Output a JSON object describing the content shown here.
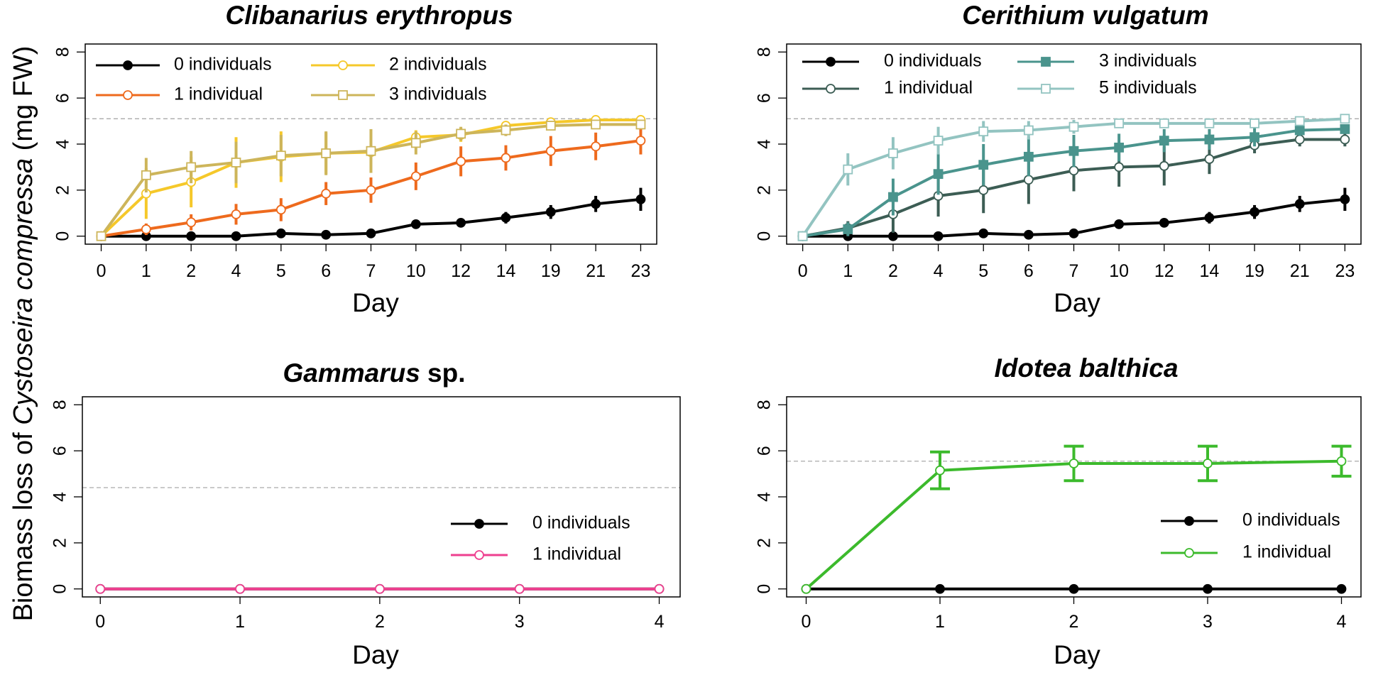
{
  "figure": {
    "y_axis_label": {
      "prefix": "Biomass loss of ",
      "italic": "Cystoseira compressa",
      "suffix": " (mg FW)"
    }
  },
  "colors": {
    "black": "#000000",
    "orange": "#ee6a1d",
    "yellow": "#f5c82a",
    "khaki": "#cdb55a",
    "darkgreen": "#3c5d54",
    "teal": "#4a948d",
    "lightteal": "#93c4c1",
    "pink": "#ee3f8f",
    "green": "#3cba2c",
    "refline": "#aaaaaa"
  },
  "chart_data": [
    {
      "id": "clibanarius",
      "type": "line",
      "title": "Clibanarius erythropus",
      "title_suffix": "",
      "xlabel": "Day",
      "ylabel": "Biomass loss of Cystoseira compressa (mg FW)",
      "categories": [
        "0",
        "1",
        "2",
        "4",
        "5",
        "6",
        "7",
        "10",
        "12",
        "14",
        "19",
        "21",
        "23"
      ],
      "ylim": [
        0,
        8
      ],
      "yticks": [
        0,
        2,
        4,
        6,
        8
      ],
      "reference_line": 5.1,
      "error_bar_style": "plain",
      "legend_columns": 2,
      "series": [
        {
          "name": "0 individuals",
          "marker": "circle",
          "fill": "filled",
          "color": "#000000",
          "values": [
            0,
            0,
            0,
            0,
            0.12,
            0.06,
            0.12,
            0.52,
            0.58,
            0.8,
            1.05,
            1.4,
            1.6
          ],
          "errors": [
            0,
            0,
            0,
            0,
            0.05,
            0.05,
            0.05,
            0.15,
            0.15,
            0.25,
            0.3,
            0.35,
            0.5
          ]
        },
        {
          "name": "1 individual",
          "marker": "circle",
          "fill": "open",
          "color": "#ee6a1d",
          "values": [
            0,
            0.3,
            0.6,
            0.95,
            1.15,
            1.85,
            2.0,
            2.6,
            3.25,
            3.4,
            3.7,
            3.9,
            4.15
          ],
          "errors": [
            0,
            0.25,
            0.35,
            0.45,
            0.5,
            0.5,
            0.55,
            0.6,
            0.65,
            0.55,
            0.65,
            0.6,
            0.6
          ]
        },
        {
          "name": "2 individuals",
          "marker": "circle",
          "fill": "open",
          "color": "#f5c82a",
          "values": [
            0,
            1.85,
            2.35,
            3.2,
            3.45,
            3.6,
            3.65,
            4.3,
            4.4,
            4.8,
            4.95,
            5.05,
            5.05
          ],
          "errors": [
            0,
            1.1,
            1.1,
            1.1,
            1.1,
            0.9,
            0.9,
            0.3,
            0.3,
            0.2,
            0.15,
            0.15,
            0.1
          ]
        },
        {
          "name": "3 individuals",
          "marker": "square",
          "fill": "open",
          "color": "#cdb55a",
          "values": [
            0,
            2.65,
            3.0,
            3.2,
            3.5,
            3.6,
            3.7,
            4.05,
            4.45,
            4.6,
            4.8,
            4.85,
            4.85
          ],
          "errors": [
            0,
            0.75,
            0.7,
            0.9,
            0.9,
            0.95,
            0.95,
            0.5,
            0.3,
            0.25,
            0.2,
            0.15,
            0.1
          ]
        }
      ]
    },
    {
      "id": "cerithium",
      "type": "line",
      "title": "Cerithium vulgatum",
      "title_suffix": "",
      "xlabel": "Day",
      "ylabel": "Biomass loss of Cystoseira compressa (mg FW)",
      "categories": [
        "0",
        "1",
        "2",
        "4",
        "5",
        "6",
        "7",
        "10",
        "12",
        "14",
        "19",
        "21",
        "23"
      ],
      "ylim": [
        0,
        8
      ],
      "yticks": [
        0,
        2,
        4,
        6,
        8
      ],
      "reference_line": 5.1,
      "error_bar_style": "plain",
      "legend_columns": 2,
      "series": [
        {
          "name": "0 individuals",
          "marker": "circle",
          "fill": "filled",
          "color": "#000000",
          "values": [
            0,
            0,
            0,
            0,
            0.12,
            0.06,
            0.12,
            0.52,
            0.58,
            0.8,
            1.05,
            1.4,
            1.6
          ],
          "errors": [
            0,
            0,
            0,
            0,
            0.05,
            0.05,
            0.05,
            0.15,
            0.15,
            0.25,
            0.3,
            0.35,
            0.5
          ]
        },
        {
          "name": "1 individual",
          "marker": "circle",
          "fill": "open",
          "color": "#3c5d54",
          "values": [
            0,
            0.35,
            0.95,
            1.75,
            2.0,
            2.45,
            2.85,
            3.0,
            3.05,
            3.35,
            3.95,
            4.2,
            4.2
          ],
          "errors": [
            0,
            0.3,
            0.8,
            0.9,
            1.0,
            1.05,
            0.9,
            0.85,
            0.85,
            0.65,
            0.35,
            0.3,
            0.3
          ]
        },
        {
          "name": "3 individuals",
          "marker": "square",
          "fill": "filled",
          "color": "#4a948d",
          "values": [
            0,
            0.3,
            1.7,
            2.7,
            3.1,
            3.45,
            3.7,
            3.85,
            4.15,
            4.2,
            4.3,
            4.6,
            4.65
          ],
          "errors": [
            0,
            0.3,
            0.8,
            0.9,
            0.9,
            0.85,
            0.7,
            0.6,
            0.5,
            0.45,
            0.4,
            0.25,
            0.2
          ]
        },
        {
          "name": "5 individuals",
          "marker": "square",
          "fill": "open",
          "color": "#93c4c1",
          "values": [
            0,
            2.9,
            3.6,
            4.15,
            4.55,
            4.6,
            4.75,
            4.9,
            4.9,
            4.9,
            4.9,
            5.0,
            5.1
          ],
          "errors": [
            0,
            0.7,
            0.7,
            0.6,
            0.45,
            0.4,
            0.3,
            0.2,
            0.2,
            0.2,
            0.2,
            0.15,
            0.15
          ]
        }
      ]
    },
    {
      "id": "gammarus",
      "type": "line",
      "title": "Gammarus",
      "title_suffix": " sp.",
      "xlabel": "Day",
      "ylabel": "Biomass loss of Cystoseira compressa (mg FW)",
      "categories": [
        "0",
        "1",
        "2",
        "3",
        "4"
      ],
      "ylim": [
        0,
        8
      ],
      "yticks": [
        0,
        2,
        4,
        6,
        8
      ],
      "reference_line": 4.4,
      "error_bar_style": "plain",
      "legend_columns": 1,
      "series": [
        {
          "name": "0 individuals",
          "marker": "circle",
          "fill": "filled",
          "color": "#000000",
          "values": [
            0,
            0,
            0,
            0,
            0
          ],
          "errors": [
            0,
            0,
            0,
            0,
            0
          ]
        },
        {
          "name": "1 individual",
          "marker": "circle",
          "fill": "open",
          "color": "#ee3f8f",
          "values": [
            0,
            0,
            0,
            0,
            0
          ],
          "errors": [
            0,
            0,
            0,
            0,
            0
          ]
        }
      ]
    },
    {
      "id": "idotea",
      "type": "line",
      "title": "Idotea balthica",
      "title_suffix": "",
      "xlabel": "Day",
      "ylabel": "Biomass loss of Cystoseira compressa (mg FW)",
      "categories": [
        "0",
        "1",
        "2",
        "3",
        "4"
      ],
      "ylim": [
        0,
        8
      ],
      "yticks": [
        0,
        2,
        4,
        6,
        8
      ],
      "reference_line": 5.55,
      "error_bar_style": "capped",
      "legend_columns": 1,
      "series": [
        {
          "name": "0 individuals",
          "marker": "circle",
          "fill": "filled",
          "color": "#000000",
          "values": [
            0,
            0,
            0,
            0,
            0
          ],
          "errors": [
            0,
            0,
            0,
            0,
            0
          ]
        },
        {
          "name": "1 individual",
          "marker": "circle",
          "fill": "open",
          "color": "#3cba2c",
          "values": [
            0,
            5.15,
            5.45,
            5.45,
            5.55
          ],
          "errors": [
            0,
            0.8,
            0.75,
            0.75,
            0.65
          ]
        }
      ]
    }
  ]
}
